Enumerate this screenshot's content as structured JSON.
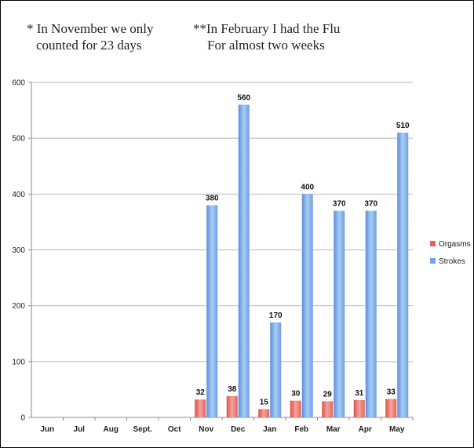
{
  "notes": {
    "note1_line1": "* In November we only",
    "note1_line2": "counted for 23 days",
    "note2_line1": "**In February I had the Flu",
    "note2_line2": "For almost two weeks"
  },
  "chart_data": {
    "type": "bar",
    "categories": [
      "Jun",
      "Jul",
      "Aug",
      "Sept.",
      "Oct",
      "Nov",
      "Dec",
      "Jan",
      "Feb",
      "Mar",
      "Apr",
      "May"
    ],
    "series": [
      {
        "name": "Orgasms",
        "color": "#e8625a",
        "values": [
          null,
          null,
          null,
          null,
          null,
          32,
          38,
          15,
          30,
          29,
          31,
          33
        ]
      },
      {
        "name": "Strokes",
        "color": "#6fa2e6",
        "values": [
          null,
          null,
          null,
          null,
          null,
          380,
          560,
          170,
          400,
          370,
          370,
          510
        ]
      }
    ],
    "ylim": [
      0,
      600
    ],
    "yticks": [
      0,
      100,
      200,
      300,
      400,
      500,
      600
    ],
    "grid": true,
    "legend": "right"
  }
}
